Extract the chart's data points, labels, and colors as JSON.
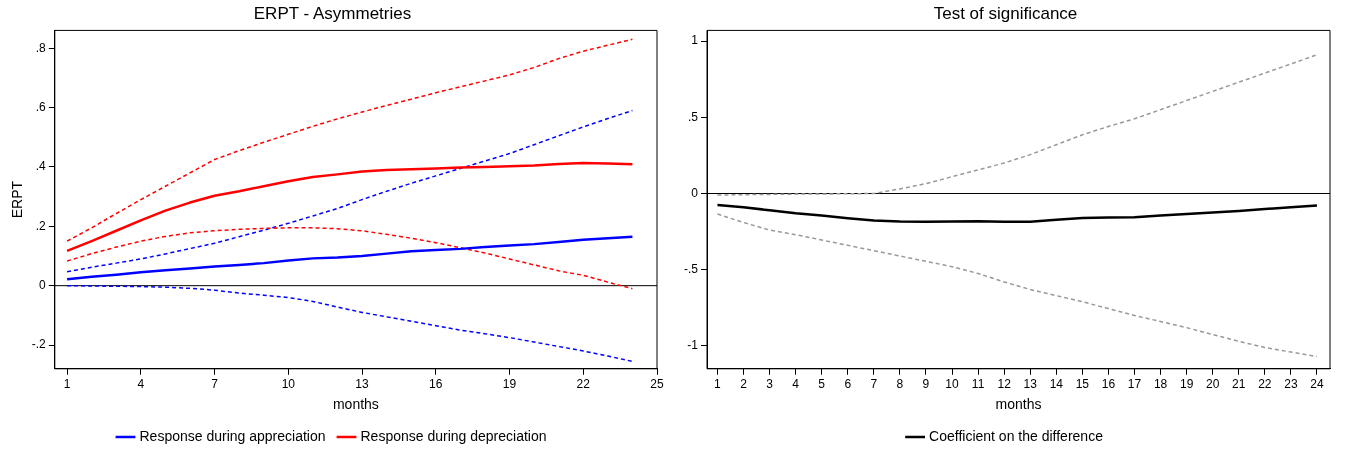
{
  "chart_data": [
    {
      "type": "line",
      "title": "ERPT - Asymmetries",
      "xlabel": "months",
      "ylabel": "ERPT",
      "x": [
        1,
        2,
        3,
        4,
        5,
        6,
        7,
        8,
        9,
        10,
        11,
        12,
        13,
        14,
        15,
        16,
        17,
        18,
        19,
        20,
        21,
        22,
        23,
        24
      ],
      "series": [
        {
          "name": "Response during appreciation",
          "color": "#0000ff",
          "line_style": "solid",
          "values": [
            0.022,
            0.03,
            0.037,
            0.045,
            0.052,
            0.058,
            0.065,
            0.07,
            0.076,
            0.085,
            0.092,
            0.095,
            0.1,
            0.108,
            0.116,
            0.12,
            0.124,
            0.13,
            0.135,
            0.14,
            0.147,
            0.155,
            0.16,
            0.165
          ]
        },
        {
          "name": "Response during depreciation",
          "color": "#ff0000",
          "line_style": "solid",
          "values": [
            0.117,
            0.15,
            0.185,
            0.22,
            0.253,
            0.28,
            0.303,
            0.318,
            0.335,
            0.352,
            0.366,
            0.375,
            0.385,
            0.39,
            0.392,
            0.395,
            0.398,
            0.4,
            0.402,
            0.405,
            0.41,
            0.413,
            0.412,
            0.409
          ]
        },
        {
          "color": "#ff0000",
          "line_style": "dashed",
          "values": [
            0.15,
            0.195,
            0.243,
            0.29,
            0.335,
            0.38,
            0.425,
            0.455,
            0.483,
            0.51,
            0.537,
            0.562,
            0.585,
            0.607,
            0.628,
            0.65,
            0.67,
            0.69,
            0.71,
            0.735,
            0.765,
            0.79,
            0.81,
            0.83
          ]
        },
        {
          "color": "#ff0000",
          "line_style": "dashed",
          "values": [
            0.083,
            0.108,
            0.13,
            0.15,
            0.166,
            0.178,
            0.185,
            0.19,
            0.193,
            0.195,
            0.195,
            0.192,
            0.185,
            0.173,
            0.16,
            0.145,
            0.128,
            0.11,
            0.09,
            0.07,
            0.05,
            0.035,
            0.012,
            -0.01
          ]
        },
        {
          "color": "#0000ff",
          "line_style": "dashed",
          "values": [
            0.047,
            0.062,
            0.076,
            0.09,
            0.107,
            0.125,
            0.143,
            0.165,
            0.187,
            0.21,
            0.235,
            0.26,
            0.29,
            0.318,
            0.345,
            0.37,
            0.395,
            0.42,
            0.445,
            0.475,
            0.505,
            0.535,
            0.563,
            0.59
          ]
        },
        {
          "color": "#0000ff",
          "line_style": "dashed",
          "values": [
            0,
            -0.001,
            -0.002,
            -0.003,
            -0.005,
            -0.009,
            -0.015,
            -0.025,
            -0.032,
            -0.04,
            -0.053,
            -0.072,
            -0.09,
            -0.105,
            -0.12,
            -0.135,
            -0.15,
            -0.162,
            -0.175,
            -0.19,
            -0.205,
            -0.22,
            -0.237,
            -0.255
          ]
        }
      ],
      "xlim": [
        0.5,
        25
      ],
      "xticks": [
        1,
        4,
        7,
        10,
        13,
        16,
        19,
        22,
        25
      ],
      "ylim": [
        -0.28,
        0.86
      ],
      "yticks": [
        {
          "value": -0.2,
          "label": "-.2"
        },
        0,
        {
          "value": 0.2,
          "label": ".2"
        },
        {
          "value": 0.4,
          "label": ".4"
        },
        {
          "value": 0.6,
          "label": ".6"
        },
        {
          "value": 0.8,
          "label": ".8"
        }
      ],
      "ref_lines": [
        {
          "axis": "y",
          "value": 0,
          "color": "#000000"
        }
      ],
      "grid": false,
      "legend": "bottom",
      "marker": "none"
    },
    {
      "type": "line",
      "title": "Test of significance",
      "xlabel": "months",
      "x": [
        1,
        2,
        3,
        4,
        5,
        6,
        7,
        8,
        9,
        10,
        11,
        12,
        13,
        14,
        15,
        16,
        17,
        18,
        19,
        20,
        21,
        22,
        23,
        24
      ],
      "series": [
        {
          "name": "Coefficient on the difference",
          "color": "#000000",
          "line_style": "solid",
          "values": [
            -0.075,
            -0.09,
            -0.11,
            -0.13,
            -0.145,
            -0.162,
            -0.177,
            -0.183,
            -0.185,
            -0.183,
            -0.182,
            -0.185,
            -0.185,
            -0.172,
            -0.16,
            -0.158,
            -0.155,
            -0.145,
            -0.135,
            -0.125,
            -0.115,
            -0.102,
            -0.09,
            -0.078
          ]
        },
        {
          "color": "#999999",
          "line_style": "dashed",
          "values": [
            -0.01,
            -0.008,
            -0.006,
            -0.004,
            -0.003,
            -0.002,
            0,
            0.03,
            0.065,
            0.11,
            0.155,
            0.2,
            0.255,
            0.32,
            0.385,
            0.44,
            0.49,
            0.55,
            0.61,
            0.67,
            0.73,
            0.79,
            0.85,
            0.91
          ]
        },
        {
          "color": "#999999",
          "line_style": "dashed",
          "values": [
            -0.135,
            -0.19,
            -0.24,
            -0.27,
            -0.305,
            -0.34,
            -0.375,
            -0.41,
            -0.445,
            -0.48,
            -0.525,
            -0.58,
            -0.63,
            -0.67,
            -0.71,
            -0.755,
            -0.8,
            -0.84,
            -0.88,
            -0.925,
            -0.97,
            -1.01,
            -1.04,
            -1.07
          ]
        }
      ],
      "xlim": [
        0.6,
        24.5
      ],
      "xticks": [
        1,
        2,
        3,
        4,
        5,
        6,
        7,
        8,
        9,
        10,
        11,
        12,
        13,
        14,
        15,
        16,
        17,
        18,
        19,
        20,
        21,
        22,
        23,
        24
      ],
      "ylim": [
        -1.15,
        1.07
      ],
      "yticks": [
        -1,
        {
          "value": -0.5,
          "label": "-.5"
        },
        0,
        {
          "value": 0.5,
          "label": ".5"
        },
        1
      ],
      "ref_lines": [
        {
          "axis": "y",
          "value": 0,
          "color": "#000000"
        }
      ],
      "grid": false,
      "legend": "bottom",
      "marker": "none"
    }
  ]
}
